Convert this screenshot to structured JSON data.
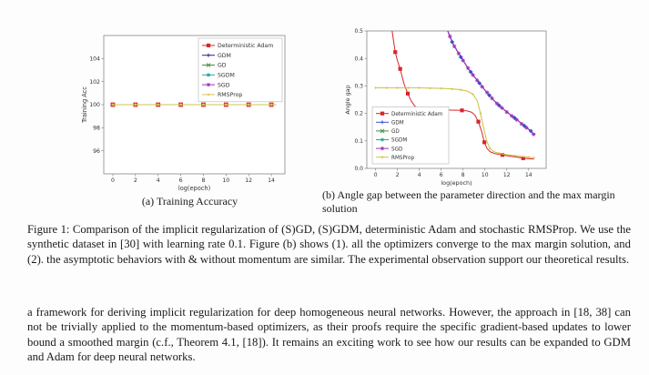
{
  "figure": {
    "subcaption_a": "(a) Training Accuracy",
    "subcaption_b": "(b) Angle gap between the parameter direction and the max margin solution",
    "caption": "Figure 1: Comparison of the implicit regularization of (S)GD, (S)GDM, deterministic Adam and stochastic RMSProp. We use the synthetic dataset in [30] with learning rate 0.1. Figure (b) shows (1). all the optimizers converge to the max margin solution, and (2). the asymptotic behaviors with & without momentum are similar. The experimental observation support our theoretical results."
  },
  "body_text": "a framework for deriving implicit regularization for deep homogeneous neural networks. However, the approach in [18, 38] can not be trivially applied to the momentum-based optimizers, as their proofs require the specific gradient-based updates to lower bound a smoothed margin (c.f., Theorem 4.1, [18]). It remains an exciting work to see how our results can be expanded to GDM and Adam for deep neural networks.",
  "colors": {
    "adam_red": "#d8252c",
    "gdm_navy": "#24248c",
    "gdm_blue": "#3c50c8",
    "gd_green": "#3f9142",
    "sgdm_teal": "#1fa89a",
    "sgd_purple": "#9c34b4",
    "rmsprop_khaki": "#cfc44e",
    "frame_grey": "#777777"
  },
  "chart_data": [
    {
      "id": "chart-a",
      "type": "line",
      "title": "",
      "xlabel": "log(epoch)",
      "ylabel": "Training Acc",
      "xlim": [
        -0.8,
        15.2
      ],
      "ylim": [
        94,
        106
      ],
      "grid": false,
      "xticks": {
        "values": [
          0,
          2,
          4,
          6,
          8,
          10,
          12,
          14
        ],
        "labels": [
          "0",
          "2",
          "4",
          "6",
          "8",
          "10",
          "12",
          "14"
        ]
      },
      "yticks": {
        "values": [
          96,
          98,
          100,
          102,
          104
        ],
        "labels": [
          "96",
          "98",
          "100",
          "102",
          "104"
        ]
      },
      "legend": {
        "position": "upper-right",
        "entries": [
          {
            "label": "Deterministic Adam",
            "color": "#d8252c",
            "marker": "square"
          },
          {
            "label": "GDM",
            "color": "#24248c",
            "marker": "plus"
          },
          {
            "label": "GD",
            "color": "#3f9142",
            "marker": "x"
          },
          {
            "label": "SGDM",
            "color": "#1fa89a",
            "marker": "star"
          },
          {
            "label": "SGD",
            "color": "#9c34b4",
            "marker": "star"
          },
          {
            "label": "RMSProp",
            "color": "#cfc44e",
            "marker": "dot"
          }
        ]
      },
      "series": [
        {
          "name": "Deterministic Adam",
          "color": "#d8252c",
          "lw": 1,
          "marker": "square",
          "msize": 2.4,
          "line": [
            [
              0,
              100
            ],
            [
              14.4,
              100
            ]
          ],
          "markers": [
            [
              0,
              100
            ],
            [
              2,
              100
            ],
            [
              4,
              100
            ],
            [
              6,
              100
            ],
            [
              8,
              100
            ],
            [
              10,
              100
            ],
            [
              12,
              100
            ],
            [
              14,
              100
            ]
          ]
        },
        {
          "name": "GDM",
          "color": "#24248c",
          "lw": 1,
          "marker": "none",
          "line": [
            [
              0,
              100
            ],
            [
              14.4,
              100
            ]
          ],
          "markers": []
        },
        {
          "name": "GD",
          "color": "#3f9142",
          "lw": 1,
          "marker": "none",
          "line": [
            [
              0,
              100
            ],
            [
              14.4,
              100
            ]
          ],
          "markers": []
        },
        {
          "name": "SGDM",
          "color": "#1fa89a",
          "lw": 1,
          "marker": "none",
          "line": [
            [
              0,
              100
            ],
            [
              14.4,
              100
            ]
          ],
          "markers": []
        },
        {
          "name": "SGD",
          "color": "#9c34b4",
          "lw": 1,
          "marker": "none",
          "line": [
            [
              0,
              100
            ],
            [
              14.4,
              100
            ]
          ],
          "markers": []
        },
        {
          "name": "RMSProp",
          "color": "#cfc44e",
          "lw": 1.1,
          "marker": "square",
          "msize": 1.3,
          "line": [
            [
              0,
              100
            ],
            [
              14.4,
              100
            ]
          ],
          "markers": [
            [
              0,
              100
            ],
            [
              2,
              100
            ],
            [
              4,
              100
            ],
            [
              6,
              100
            ],
            [
              8,
              100
            ],
            [
              10,
              100
            ],
            [
              12,
              100
            ],
            [
              14,
              100
            ]
          ]
        }
      ]
    },
    {
      "id": "chart-b",
      "type": "line",
      "title": "",
      "xlabel": "log(epoch)",
      "ylabel": "Angle gap",
      "xlim": [
        -0.8,
        15.6
      ],
      "ylim": [
        0,
        0.5
      ],
      "grid": false,
      "xticks": {
        "values": [
          0,
          2,
          4,
          6,
          8,
          10,
          12,
          14
        ],
        "labels": [
          "0",
          "2",
          "4",
          "6",
          "8",
          "10",
          "12",
          "14"
        ]
      },
      "yticks": {
        "values": [
          0,
          0.1,
          0.2,
          0.3,
          0.4,
          0.5
        ],
        "labels": [
          "0.0",
          "0.1",
          "0.2",
          "0.3",
          "0.4",
          "0.5"
        ]
      },
      "legend": {
        "position": "lower-left",
        "entries": [
          {
            "label": "Deterministic Adam",
            "color": "#d8252c",
            "marker": "square"
          },
          {
            "label": "GDM",
            "color": "#3c50c8",
            "marker": "plus"
          },
          {
            "label": "GD",
            "color": "#3f9142",
            "marker": "x"
          },
          {
            "label": "SGDM",
            "color": "#1fa89a",
            "marker": "star"
          },
          {
            "label": "SGD",
            "color": "#9c34b4",
            "marker": "star"
          },
          {
            "label": "RMSProp",
            "color": "#cfc44e",
            "marker": "dot"
          }
        ]
      },
      "series": [
        {
          "name": "Deterministic Adam",
          "color": "#d8252c",
          "lw": 1,
          "marker": "square",
          "msize": 2.1,
          "line": [
            [
              1.35,
              0.55
            ],
            [
              1.55,
              0.49
            ],
            [
              1.8,
              0.423
            ],
            [
              2.0,
              0.392
            ],
            [
              2.25,
              0.362
            ],
            [
              2.6,
              0.308
            ],
            [
              2.95,
              0.272
            ],
            [
              3.25,
              0.246
            ],
            [
              3.55,
              0.228
            ],
            [
              3.9,
              0.216
            ],
            [
              4.4,
              0.214
            ],
            [
              4.9,
              0.213
            ],
            [
              5.9,
              0.212
            ],
            [
              6.9,
              0.212
            ],
            [
              7.9,
              0.211
            ],
            [
              8.4,
              0.209
            ],
            [
              8.8,
              0.204
            ],
            [
              9.1,
              0.193
            ],
            [
              9.4,
              0.17
            ],
            [
              9.7,
              0.135
            ],
            [
              9.95,
              0.095
            ],
            [
              10.2,
              0.072
            ],
            [
              10.5,
              0.06
            ],
            [
              10.9,
              0.054
            ],
            [
              11.6,
              0.049
            ],
            [
              12.2,
              0.045
            ],
            [
              12.9,
              0.041
            ],
            [
              13.5,
              0.037
            ],
            [
              14.0,
              0.035
            ],
            [
              14.5,
              0.034
            ]
          ],
          "markers": [
            [
              1.8,
              0.423
            ],
            [
              2.25,
              0.362
            ],
            [
              2.95,
              0.272
            ],
            [
              3.9,
              0.216
            ],
            [
              5.9,
              0.212
            ],
            [
              7.9,
              0.211
            ],
            [
              9.4,
              0.17
            ],
            [
              9.95,
              0.095
            ],
            [
              11.6,
              0.049
            ],
            [
              13.5,
              0.037
            ]
          ]
        },
        {
          "name": "RMSProp",
          "color": "#cfc44e",
          "lw": 1.1,
          "marker": "dot",
          "msize": 2.0,
          "line": [
            [
              0,
              0.293
            ],
            [
              1,
              0.293
            ],
            [
              2,
              0.293
            ],
            [
              3,
              0.293
            ],
            [
              4,
              0.293
            ],
            [
              5,
              0.292
            ],
            [
              6,
              0.291
            ],
            [
              7,
              0.289
            ],
            [
              7.8,
              0.286
            ],
            [
              8.4,
              0.281
            ],
            [
              8.9,
              0.27
            ],
            [
              9.3,
              0.246
            ],
            [
              9.6,
              0.2
            ],
            [
              9.9,
              0.145
            ],
            [
              10.15,
              0.102
            ],
            [
              10.45,
              0.073
            ],
            [
              10.8,
              0.061
            ],
            [
              11.3,
              0.055
            ],
            [
              12,
              0.05
            ],
            [
              12.8,
              0.046
            ],
            [
              13.6,
              0.042
            ],
            [
              14.6,
              0.039
            ]
          ],
          "markers": [
            [
              0,
              0.293
            ],
            [
              1,
              0.293
            ],
            [
              2,
              0.293
            ],
            [
              3,
              0.293
            ],
            [
              4,
              0.293
            ],
            [
              5,
              0.292
            ],
            [
              6,
              0.291
            ],
            [
              7,
              0.289
            ],
            [
              7.8,
              0.286
            ],
            [
              8.9,
              0.27
            ],
            [
              9.6,
              0.2
            ],
            [
              10.45,
              0.073
            ],
            [
              11.3,
              0.055
            ],
            [
              12.8,
              0.046
            ],
            [
              14.0,
              0.041
            ]
          ]
        },
        {
          "name": "GD",
          "color": "#3f9142",
          "lw": 1,
          "marker": "none",
          "line": [
            [
              6.45,
              0.55
            ],
            [
              6.6,
              0.5
            ],
            [
              7.0,
              0.46
            ],
            [
              7.5,
              0.425
            ],
            [
              8.0,
              0.393
            ],
            [
              8.5,
              0.362
            ],
            [
              9.0,
              0.335
            ],
            [
              9.5,
              0.31
            ],
            [
              10.0,
              0.285
            ],
            [
              10.5,
              0.262
            ],
            [
              11.0,
              0.24
            ],
            [
              11.5,
              0.222
            ],
            [
              12.0,
              0.205
            ],
            [
              12.5,
              0.19
            ],
            [
              13.0,
              0.175
            ],
            [
              13.5,
              0.158
            ],
            [
              14.0,
              0.142
            ],
            [
              14.5,
              0.123
            ]
          ],
          "markers": []
        },
        {
          "name": "SGDM",
          "color": "#1fa89a",
          "lw": 1,
          "marker": "none",
          "line": [
            [
              6.45,
              0.55
            ],
            [
              6.6,
              0.5
            ],
            [
              7.0,
              0.46
            ],
            [
              7.5,
              0.425
            ],
            [
              8.0,
              0.393
            ],
            [
              8.5,
              0.362
            ],
            [
              9.0,
              0.335
            ],
            [
              9.5,
              0.31
            ],
            [
              10.0,
              0.285
            ],
            [
              10.5,
              0.262
            ],
            [
              11.0,
              0.24
            ],
            [
              11.5,
              0.222
            ],
            [
              12.0,
              0.205
            ],
            [
              12.5,
              0.19
            ],
            [
              13.0,
              0.175
            ],
            [
              13.5,
              0.158
            ],
            [
              14.0,
              0.142
            ],
            [
              14.5,
              0.123
            ]
          ],
          "markers": []
        },
        {
          "name": "SGD",
          "color": "#9c34b4",
          "lw": 1.2,
          "marker": "star",
          "msize": 2.2,
          "line": [
            [
              6.45,
              0.55
            ],
            [
              6.6,
              0.5
            ],
            [
              7.0,
              0.46
            ],
            [
              7.5,
              0.425
            ],
            [
              8.0,
              0.393
            ],
            [
              8.5,
              0.362
            ],
            [
              9.0,
              0.335
            ],
            [
              9.5,
              0.31
            ],
            [
              10.0,
              0.285
            ],
            [
              10.5,
              0.262
            ],
            [
              11.0,
              0.24
            ],
            [
              11.5,
              0.222
            ],
            [
              12.0,
              0.205
            ],
            [
              12.5,
              0.19
            ],
            [
              13.0,
              0.175
            ],
            [
              13.5,
              0.158
            ],
            [
              14.0,
              0.142
            ],
            [
              14.5,
              0.123
            ]
          ],
          "markers": [
            [
              6.8,
              0.48
            ],
            [
              7.2,
              0.444
            ],
            [
              7.6,
              0.418
            ],
            [
              8.0,
              0.393
            ],
            [
              8.45,
              0.365
            ],
            [
              8.9,
              0.34
            ],
            [
              9.3,
              0.32
            ],
            [
              9.75,
              0.297
            ],
            [
              10.2,
              0.276
            ],
            [
              10.65,
              0.255
            ],
            [
              11.1,
              0.236
            ],
            [
              11.55,
              0.22
            ],
            [
              12.0,
              0.205
            ],
            [
              12.45,
              0.191
            ],
            [
              12.9,
              0.177
            ],
            [
              13.35,
              0.162
            ],
            [
              13.8,
              0.148
            ],
            [
              14.45,
              0.124
            ]
          ]
        },
        {
          "name": "GDM",
          "color": "#3c50c8",
          "lw": 0,
          "marker": "diamond",
          "msize": 1.9,
          "line": [],
          "markers": [
            [
              7.0,
              0.46
            ],
            [
              7.8,
              0.405
            ],
            [
              8.7,
              0.351
            ],
            [
              9.5,
              0.31
            ],
            [
              10.4,
              0.266
            ],
            [
              11.3,
              0.229
            ],
            [
              12.7,
              0.184
            ],
            [
              13.6,
              0.155
            ],
            [
              14.2,
              0.136
            ]
          ]
        }
      ]
    }
  ]
}
